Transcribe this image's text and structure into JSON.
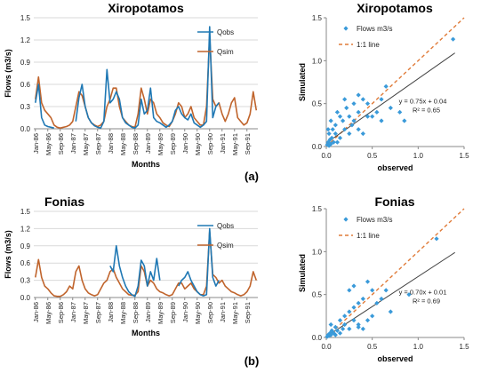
{
  "colors": {
    "qobs": "#1f78b4",
    "qsim": "#c0642c",
    "scatter": "#3a9ad9",
    "one_to_one": "#e07b39",
    "fit": "#404040",
    "grid": "#d9d9d9",
    "axis": "#888888"
  },
  "panels": [
    {
      "label": "(a)"
    },
    {
      "label": "(b)"
    }
  ],
  "chart_data": [
    {
      "type": "line",
      "title": "Xiropotamos",
      "xlabel": "Months",
      "ylabel": "Flows (m3/s)",
      "ylim": [
        0,
        1.5
      ],
      "yticks": [
        "0.0",
        "0.3",
        "0.6",
        "0.9",
        "1.2",
        "1.5"
      ],
      "xticks": [
        "Jan-86",
        "May-86",
        "Sep-86",
        "Jan-87",
        "May-87",
        "Sep-87",
        "Jan-88",
        "May-88",
        "Sep-88",
        "Jan-89",
        "May-89",
        "Sep-89",
        "Jan-90",
        "May-90",
        "Sep-90",
        "Jan-91",
        "May-91",
        "Sep-91"
      ],
      "grid": "horizontal",
      "legend": "top-right",
      "x_start": "1986-01",
      "series": [
        {
          "name": "Qobs",
          "values": [
            0.35,
            0.6,
            0.15,
            0.05,
            0.03,
            0.02,
            0.01,
            null,
            null,
            null,
            null,
            null,
            null,
            0.1,
            0.42,
            0.6,
            0.3,
            0.15,
            0.08,
            0.04,
            0.02,
            0.01,
            0.1,
            0.8,
            0.35,
            0.4,
            0.5,
            0.4,
            0.15,
            0.08,
            0.05,
            0.02,
            0.01,
            0.05,
            0.4,
            0.2,
            0.25,
            0.55,
            0.15,
            0.1,
            0.08,
            0.05,
            0.02,
            0.05,
            0.1,
            0.25,
            0.3,
            0.2,
            0.15,
            0.12,
            0.2,
            0.08,
            0.05,
            0.02,
            0.05,
            0.1,
            1.38,
            0.15,
            0.3,
            0.35,
            null,
            null,
            null,
            null,
            null,
            null,
            null,
            null,
            null,
            null,
            null,
            null
          ]
        },
        {
          "name": "Qsim",
          "values": [
            0.4,
            0.7,
            0.35,
            0.25,
            0.2,
            0.15,
            0.05,
            0.02,
            0.01,
            0.02,
            0.03,
            0.05,
            0.1,
            0.3,
            0.5,
            0.45,
            0.3,
            0.15,
            0.08,
            0.05,
            0.03,
            0.05,
            0.1,
            0.3,
            0.4,
            0.55,
            0.55,
            0.3,
            0.15,
            0.1,
            0.05,
            0.03,
            0.02,
            0.2,
            0.55,
            0.4,
            0.2,
            0.4,
            0.35,
            0.2,
            0.15,
            0.08,
            0.05,
            0.03,
            0.1,
            0.2,
            0.35,
            0.3,
            0.15,
            0.2,
            0.3,
            0.15,
            0.1,
            0.05,
            0.05,
            0.3,
            1.25,
            0.4,
            0.3,
            0.35,
            0.2,
            0.1,
            0.2,
            0.35,
            0.42,
            0.15,
            0.1,
            0.05,
            0.08,
            0.2,
            0.5,
            0.25
          ]
        }
      ]
    },
    {
      "type": "scatter",
      "title": "Xiropotamos",
      "xlabel": "observed",
      "ylabel": "Simulated",
      "xlim": [
        0,
        1.5
      ],
      "ylim": [
        0,
        1.5
      ],
      "xticks": [
        "0.0",
        "0.5",
        "1.0",
        "1.5"
      ],
      "yticks": [
        "0.0",
        "0.5",
        "1.0",
        "1.5"
      ],
      "legend": "top-left",
      "legend_entries": [
        "Flows m3/s",
        "1:1 line"
      ],
      "equation": "y = 0.75x + 0.04",
      "r2": "R² = 0.65",
      "fit": {
        "slope": 0.75,
        "intercept": 0.04
      },
      "points": [
        [
          0.01,
          0.02
        ],
        [
          0.02,
          0.05
        ],
        [
          0.03,
          0.01
        ],
        [
          0.04,
          0.08
        ],
        [
          0.05,
          0.03
        ],
        [
          0.06,
          0.1
        ],
        [
          0.08,
          0.05
        ],
        [
          0.1,
          0.15
        ],
        [
          0.02,
          0.2
        ],
        [
          0.05,
          0.3
        ],
        [
          0.1,
          0.25
        ],
        [
          0.12,
          0.4
        ],
        [
          0.15,
          0.1
        ],
        [
          0.15,
          0.35
        ],
        [
          0.18,
          0.3
        ],
        [
          0.2,
          0.2
        ],
        [
          0.2,
          0.55
        ],
        [
          0.25,
          0.15
        ],
        [
          0.25,
          0.35
        ],
        [
          0.3,
          0.3
        ],
        [
          0.3,
          0.5
        ],
        [
          0.35,
          0.2
        ],
        [
          0.35,
          0.4
        ],
        [
          0.4,
          0.55
        ],
        [
          0.4,
          0.15
        ],
        [
          0.45,
          0.5
        ],
        [
          0.5,
          0.35
        ],
        [
          0.55,
          0.4
        ],
        [
          0.6,
          0.55
        ],
        [
          0.6,
          0.3
        ],
        [
          0.65,
          0.7
        ],
        [
          0.7,
          0.45
        ],
        [
          0.8,
          0.4
        ],
        [
          0.85,
          0.3
        ],
        [
          0.35,
          0.6
        ],
        [
          0.03,
          0.15
        ],
        [
          0.07,
          0.2
        ],
        [
          0.12,
          0.05
        ],
        [
          0.22,
          0.45
        ],
        [
          0.28,
          0.25
        ],
        [
          0.45,
          0.35
        ],
        [
          1.38,
          1.25
        ]
      ]
    },
    {
      "type": "line",
      "title": "Fonias",
      "xlabel": "Months",
      "ylabel": "Flows (m3/s)",
      "ylim": [
        0,
        1.5
      ],
      "yticks": [
        "0.0",
        "0.3",
        "0.6",
        "0.9",
        "1.2",
        "1.5"
      ],
      "xticks": [
        "Jan-86",
        "May-86",
        "Sep-86",
        "Jan-87",
        "May-87",
        "Sep-87",
        "Jan-88",
        "May-88",
        "Sep-88",
        "Jan-89",
        "May-89",
        "Sep-89",
        "Jan-90",
        "May-90",
        "Sep-90",
        "Jan-91",
        "May-91",
        "Sep-91"
      ],
      "grid": "horizontal",
      "legend": "top-right",
      "x_start": "1986-01",
      "series": [
        {
          "name": "Qobs",
          "values": [
            null,
            null,
            null,
            null,
            null,
            null,
            null,
            null,
            null,
            null,
            null,
            null,
            null,
            null,
            null,
            null,
            null,
            null,
            null,
            null,
            null,
            null,
            null,
            null,
            0.55,
            0.45,
            0.9,
            0.55,
            0.35,
            0.2,
            0.1,
            0.05,
            0.02,
            0.2,
            0.65,
            0.55,
            0.2,
            0.45,
            0.3,
            0.68,
            0.3,
            null,
            null,
            null,
            null,
            null,
            0.2,
            0.3,
            0.35,
            0.45,
            0.3,
            0.2,
            0.1,
            0.05,
            0.03,
            0.05,
            1.2,
            0.35,
            0.2,
            0.3,
            null,
            null,
            null,
            null,
            null,
            null,
            null,
            null,
            null,
            null,
            null,
            null
          ]
        },
        {
          "name": "Qsim",
          "values": [
            0.35,
            0.66,
            0.35,
            0.2,
            0.15,
            0.08,
            0.03,
            0.02,
            0.02,
            0.05,
            0.1,
            0.2,
            0.15,
            0.45,
            0.55,
            0.3,
            0.15,
            0.08,
            0.05,
            0.03,
            0.05,
            0.15,
            0.25,
            0.3,
            0.45,
            0.5,
            0.35,
            0.25,
            0.15,
            0.1,
            0.05,
            0.04,
            0.04,
            0.1,
            0.55,
            0.45,
            0.2,
            0.3,
            0.25,
            0.15,
            0.1,
            0.08,
            0.05,
            0.03,
            0.05,
            0.15,
            0.25,
            0.25,
            0.15,
            0.2,
            0.25,
            0.15,
            0.1,
            0.05,
            0.05,
            0.2,
            1.15,
            0.4,
            0.35,
            0.25,
            0.3,
            0.2,
            0.15,
            0.1,
            0.08,
            0.05,
            0.03,
            0.05,
            0.1,
            0.2,
            0.45,
            0.3
          ]
        }
      ]
    },
    {
      "type": "scatter",
      "title": "Fonias",
      "xlabel": "observed",
      "ylabel": "Simulated",
      "xlim": [
        0,
        1.5
      ],
      "ylim": [
        0,
        1.5
      ],
      "xticks": [
        "0.0",
        "0.5",
        "1.0",
        "1.5"
      ],
      "yticks": [
        "0.0",
        "0.5",
        "1.0",
        "1.5"
      ],
      "legend": "top-left",
      "legend_entries": [
        "Flows m3/s",
        "1:1 line"
      ],
      "equation": "y = 0.70x + 0.01",
      "r2": "R² = 0.69",
      "fit": {
        "slope": 0.7,
        "intercept": 0.01
      },
      "points": [
        [
          0.01,
          0.01
        ],
        [
          0.02,
          0.03
        ],
        [
          0.03,
          0.02
        ],
        [
          0.04,
          0.05
        ],
        [
          0.05,
          0.03
        ],
        [
          0.06,
          0.08
        ],
        [
          0.08,
          0.05
        ],
        [
          0.1,
          0.12
        ],
        [
          0.12,
          0.08
        ],
        [
          0.15,
          0.2
        ],
        [
          0.18,
          0.1
        ],
        [
          0.2,
          0.25
        ],
        [
          0.2,
          0.15
        ],
        [
          0.25,
          0.3
        ],
        [
          0.25,
          0.1
        ],
        [
          0.3,
          0.35
        ],
        [
          0.3,
          0.2
        ],
        [
          0.35,
          0.4
        ],
        [
          0.35,
          0.12
        ],
        [
          0.4,
          0.45
        ],
        [
          0.4,
          0.1
        ],
        [
          0.45,
          0.65
        ],
        [
          0.45,
          0.2
        ],
        [
          0.5,
          0.55
        ],
        [
          0.5,
          0.25
        ],
        [
          0.55,
          0.4
        ],
        [
          0.6,
          0.45
        ],
        [
          0.65,
          0.55
        ],
        [
          0.7,
          0.3
        ],
        [
          0.9,
          0.5
        ],
        [
          0.25,
          0.55
        ],
        [
          0.3,
          0.6
        ],
        [
          0.35,
          0.15
        ],
        [
          0.15,
          0.05
        ],
        [
          0.05,
          0.15
        ],
        [
          0.1,
          0.03
        ],
        [
          1.2,
          1.15
        ]
      ]
    }
  ]
}
